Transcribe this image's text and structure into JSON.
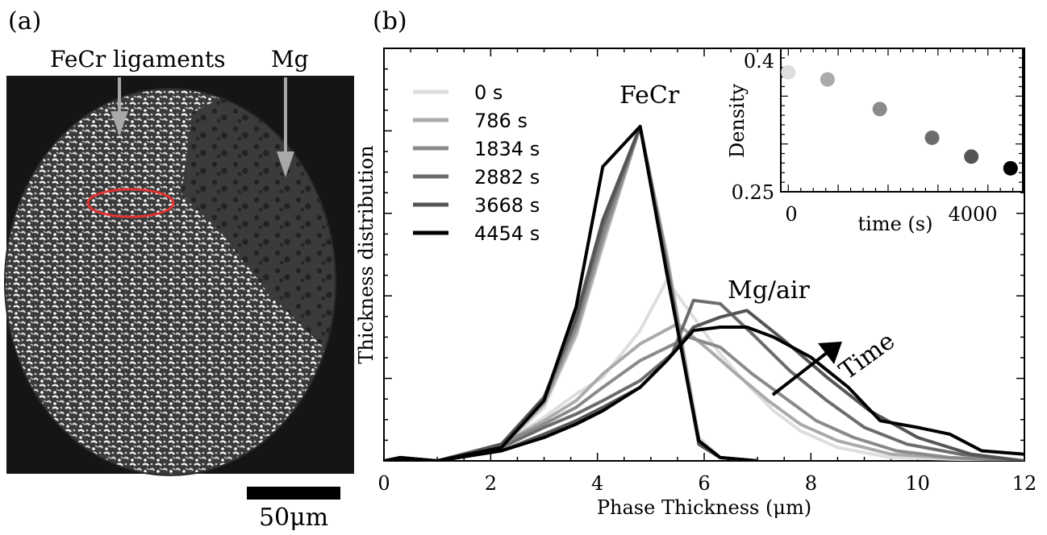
{
  "panel_a": {
    "label": "(a)",
    "annotation_left": "FeCr ligaments",
    "annotation_right": "Mg",
    "scale_bar_label": "50μm"
  },
  "chart_data": [
    {
      "type": "line",
      "panel_label": "(b)",
      "xlabel": "Phase Thickness (μm)",
      "ylabel": "Thickness distribution",
      "xlim": [
        0,
        12
      ],
      "xticks": [
        "0",
        "2",
        "4",
        "6",
        "8",
        "10",
        "12"
      ],
      "y_tick_labels_shown": false,
      "ylim": [
        0,
        1
      ],
      "legend": {
        "placement": "top-left"
      },
      "annotations": [
        {
          "text": "FeCr",
          "at": [
            4.8,
            1.05
          ]
        },
        {
          "text": "Mg/air",
          "at": [
            7.2,
            0.52
          ]
        },
        {
          "text": "Time",
          "at": [
            8.8,
            0.3
          ],
          "arrow_from": [
            7.2,
            0.19
          ],
          "arrow_to": [
            8.9,
            0.37
          ]
        }
      ],
      "series": [
        {
          "name": "0 s",
          "color": "#dedede",
          "fecr": {
            "x": [
              0,
              0.3,
              1,
              2.2,
              3,
              3.6,
              4.1,
              4.8,
              5.3,
              5.9,
              6.3,
              7
            ],
            "y": [
              0,
              0.01,
              0,
              0.04,
              0.16,
              0.37,
              0.64,
              1.0,
              0.62,
              0.07,
              0.01,
              0
            ]
          },
          "mg": {
            "x": [
              0,
              1,
              2.2,
              3,
              3.6,
              4.1,
              4.8,
              5.3,
              5.8,
              6.3,
              6.8,
              7.3,
              7.8,
              8.5,
              9.5,
              12
            ],
            "y": [
              0,
              0,
              0.05,
              0.13,
              0.2,
              0.25,
              0.39,
              0.54,
              0.43,
              0.32,
              0.23,
              0.15,
              0.09,
              0.04,
              0.01,
              0
            ]
          }
        },
        {
          "name": "786 s",
          "color": "#aaaaaa",
          "fecr": {
            "x": [
              0,
              0.3,
              1,
              2.2,
              3,
              3.6,
              4.1,
              4.8,
              5.3,
              5.9,
              6.3,
              7
            ],
            "y": [
              0,
              0.01,
              0,
              0.04,
              0.17,
              0.38,
              0.65,
              1.0,
              0.61,
              0.06,
              0.01,
              0
            ]
          },
          "mg": {
            "x": [
              0,
              1,
              2.2,
              3,
              3.6,
              4.1,
              4.8,
              5.5,
              6.1,
              6.6,
              7.2,
              7.8,
              8.5,
              9.5,
              10.5,
              12
            ],
            "y": [
              0,
              0,
              0.05,
              0.12,
              0.18,
              0.26,
              0.35,
              0.41,
              0.33,
              0.26,
              0.18,
              0.11,
              0.06,
              0.02,
              0.01,
              0
            ]
          }
        },
        {
          "name": "1834 s",
          "color": "#8a8a8a",
          "fecr": {
            "x": [
              0,
              0.3,
              1,
              2.2,
              3,
              3.6,
              4.1,
              4.8,
              5.3,
              5.9,
              6.3,
              7
            ],
            "y": [
              0,
              0.01,
              0,
              0.05,
              0.18,
              0.4,
              0.67,
              1.0,
              0.6,
              0.05,
              0.01,
              0
            ]
          },
          "mg": {
            "x": [
              0,
              1,
              2.2,
              3,
              3.6,
              4.1,
              4.8,
              5.7,
              6.3,
              6.9,
              7.5,
              8.1,
              8.8,
              9.6,
              10.6,
              12
            ],
            "y": [
              0,
              0,
              0.05,
              0.11,
              0.16,
              0.22,
              0.3,
              0.37,
              0.34,
              0.26,
              0.19,
              0.12,
              0.07,
              0.03,
              0.01,
              0
            ]
          }
        },
        {
          "name": "2882 s",
          "color": "#6c6c6c",
          "fecr": {
            "x": [
              0,
              0.3,
              1,
              2.2,
              3,
              3.6,
              4.1,
              4.8,
              5.3,
              5.9,
              6.3,
              7
            ],
            "y": [
              0,
              0.01,
              0,
              0.05,
              0.19,
              0.42,
              0.7,
              1.0,
              0.58,
              0.05,
              0.01,
              0
            ]
          },
          "mg": {
            "x": [
              0,
              1,
              2.2,
              3,
              3.6,
              4.1,
              4.8,
              5.4,
              5.8,
              6.3,
              6.9,
              7.6,
              8.3,
              9.0,
              9.8,
              10.8,
              12
            ],
            "y": [
              0,
              0,
              0.04,
              0.1,
              0.14,
              0.18,
              0.24,
              0.32,
              0.48,
              0.47,
              0.38,
              0.27,
              0.18,
              0.1,
              0.05,
              0.02,
              0
            ]
          }
        },
        {
          "name": "3668 s",
          "color": "#555555",
          "fecr": {
            "x": [
              0,
              0.3,
              1,
              2.2,
              3,
              3.6,
              4.1,
              4.8,
              5.3,
              5.9,
              6.3,
              7
            ],
            "y": [
              0,
              0.01,
              0,
              0.05,
              0.19,
              0.43,
              0.72,
              1.0,
              0.57,
              0.05,
              0.01,
              0
            ]
          },
          "mg": {
            "x": [
              0,
              1,
              2.2,
              3,
              3.6,
              4.1,
              4.8,
              5.3,
              5.8,
              6.3,
              6.8,
              7.5,
              8.3,
              9.1,
              10.0,
              11.0,
              12
            ],
            "y": [
              0,
              0,
              0.03,
              0.08,
              0.12,
              0.16,
              0.22,
              0.3,
              0.4,
              0.43,
              0.45,
              0.36,
              0.25,
              0.15,
              0.07,
              0.02,
              0
            ]
          }
        },
        {
          "name": "4454 s",
          "color": "#000000",
          "fecr": {
            "x": [
              0,
              0.3,
              1,
              2.2,
              3,
              3.6,
              4.1,
              4.8,
              5.3,
              5.9,
              6.3,
              7
            ],
            "y": [
              0,
              0.01,
              0,
              0.04,
              0.18,
              0.46,
              0.88,
              1.0,
              0.56,
              0.06,
              0.01,
              0
            ]
          },
          "mg": {
            "x": [
              0,
              1,
              2.2,
              3,
              3.6,
              4.1,
              4.8,
              5.3,
              5.8,
              6.3,
              6.8,
              7.3,
              8.0,
              8.7,
              9.3,
              10.0,
              10.6,
              11.2,
              12
            ],
            "y": [
              0,
              0,
              0.03,
              0.07,
              0.11,
              0.15,
              0.22,
              0.3,
              0.39,
              0.4,
              0.4,
              0.37,
              0.31,
              0.22,
              0.12,
              0.1,
              0.08,
              0.03,
              0.02
            ]
          }
        }
      ]
    },
    {
      "type": "scatter",
      "inset": true,
      "xlabel": "time (s)",
      "ylabel": "Density",
      "xlim": [
        -150,
        4700
      ],
      "ylim": [
        0.25,
        0.4
      ],
      "xticks": [
        "0",
        "4000"
      ],
      "yticks": [
        "0.25",
        "0.4"
      ],
      "points": [
        {
          "x": 0,
          "y": 0.385,
          "color": "#dedede"
        },
        {
          "x": 786,
          "y": 0.377,
          "color": "#aaaaaa"
        },
        {
          "x": 1834,
          "y": 0.344,
          "color": "#8a8a8a"
        },
        {
          "x": 2882,
          "y": 0.312,
          "color": "#6c6c6c"
        },
        {
          "x": 3668,
          "y": 0.291,
          "color": "#555555"
        },
        {
          "x": 4454,
          "y": 0.278,
          "color": "#000000"
        }
      ]
    }
  ]
}
